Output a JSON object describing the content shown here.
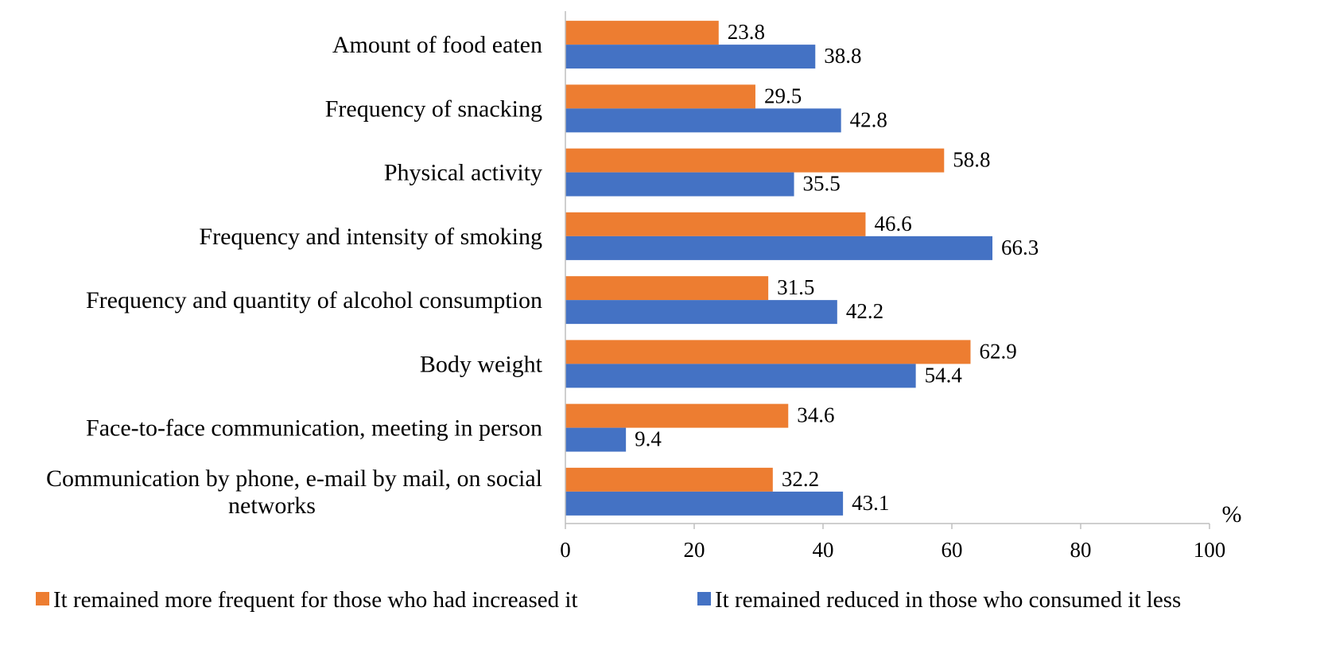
{
  "chart_data": {
    "type": "bar",
    "orientation": "horizontal",
    "categories": [
      "Amount of food eaten",
      "Frequency of snacking",
      "Physical activity",
      "Frequency and intensity of smoking",
      "Frequency and quantity of alcohol consumption",
      "Body weight",
      "Face-to-face communication, meeting in person",
      "Communication by phone, e-mail by mail, on social networks"
    ],
    "category_lines": [
      [
        "Amount of food eaten"
      ],
      [
        "Frequency of snacking"
      ],
      [
        "Physical activity"
      ],
      [
        "Frequency and intensity of smoking"
      ],
      [
        "Frequency and quantity of alcohol consumption"
      ],
      [
        "Body weight"
      ],
      [
        "Face-to-face communication, meeting in person"
      ],
      [
        "Communication by phone, e-mail by mail, on social",
        "networks"
      ]
    ],
    "series": [
      {
        "name": "It remained more frequent for those who had increased it",
        "color": "#ED7D31",
        "values": [
          23.8,
          29.5,
          58.8,
          46.6,
          31.5,
          62.9,
          34.6,
          32.2
        ],
        "labels": [
          "23.8",
          "29.5",
          "58.8",
          "46.6",
          "31.5",
          "62.9",
          "34.6",
          "32.2"
        ]
      },
      {
        "name": "It remained reduced in those who consumed it less",
        "color": "#4472C4",
        "values": [
          38.8,
          42.8,
          35.5,
          66.3,
          42.2,
          54.4,
          9.4,
          43.1
        ],
        "labels": [
          "38.8",
          "42.8",
          "35.5",
          "66.3",
          "42.2",
          "54.4",
          "9.4",
          "43.1"
        ]
      }
    ],
    "xlim": [
      0,
      100
    ],
    "xticks": [
      0,
      20,
      40,
      60,
      80,
      100
    ],
    "xtick_labels": [
      "0",
      "20",
      "40",
      "60",
      "80",
      "100"
    ],
    "xlabel": "%",
    "title": "",
    "grid": false,
    "legend_position": "bottom"
  }
}
